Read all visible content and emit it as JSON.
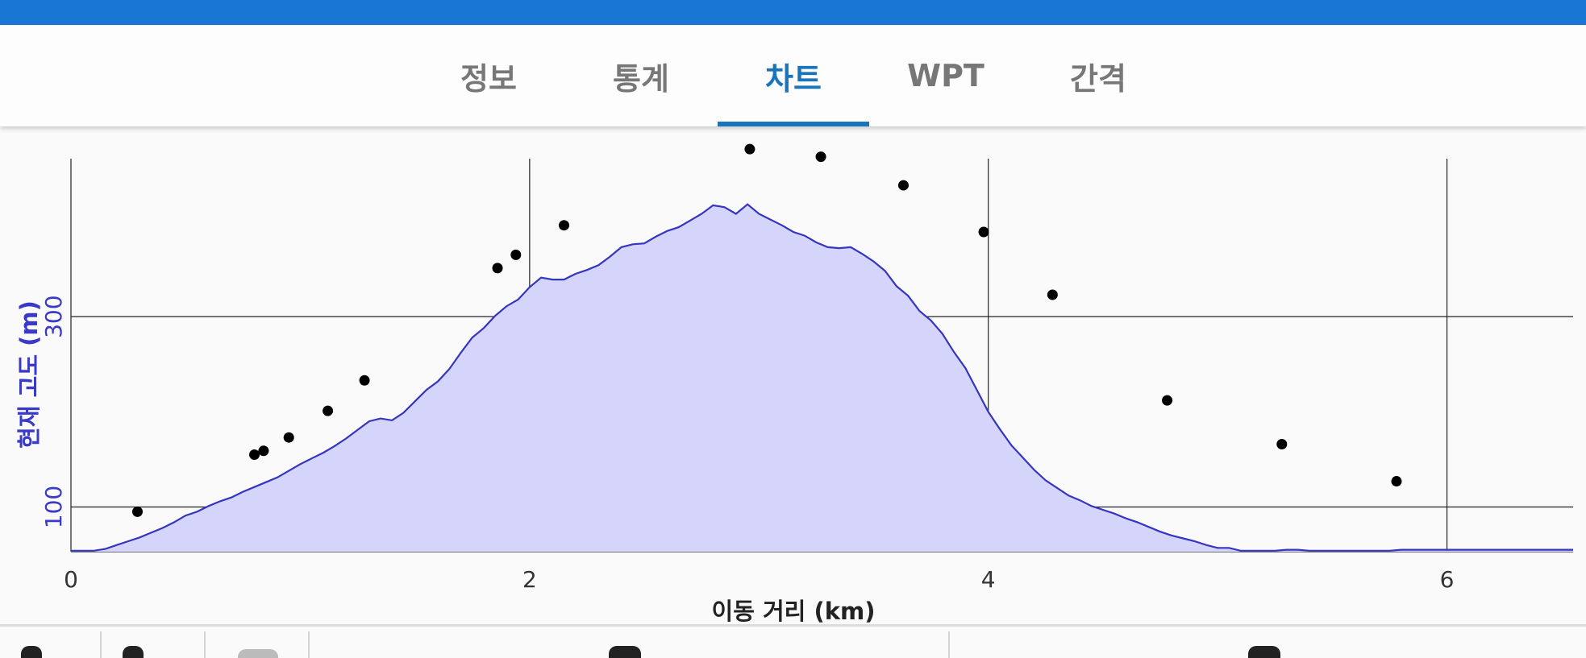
{
  "tabs": [
    {
      "label": "정보",
      "active": false
    },
    {
      "label": "통계",
      "active": false
    },
    {
      "label": "차트",
      "active": true
    },
    {
      "label": "WPT",
      "active": false
    },
    {
      "label": "간격",
      "active": false
    }
  ],
  "colors": {
    "status_bar": "#1976d2",
    "tab_active": "#1a73bd",
    "tab_inactive": "#777777",
    "area_fill": "#d5d4fb",
    "area_line": "#3535c0",
    "axis_label_y": "#3a3ac8",
    "points": "#000000"
  },
  "chart_data": {
    "type": "area",
    "title": "",
    "xlabel": "이동 거리 (km)",
    "ylabel": "현재 고도 (m)",
    "xlim": [
      0,
      6.55
    ],
    "ylim": [
      53,
      466
    ],
    "x_ticks": [
      0,
      2,
      4,
      6
    ],
    "y_ticks": [
      100,
      300
    ],
    "grid": true,
    "legend": "none",
    "series": [
      {
        "kind": "area",
        "x": [
          0,
          0.05,
          0.1,
          0.15,
          0.2,
          0.25,
          0.3,
          0.35,
          0.4,
          0.45,
          0.5,
          0.55,
          0.6,
          0.65,
          0.7,
          0.75,
          0.8,
          0.85,
          0.9,
          0.95,
          1.0,
          1.05,
          1.1,
          1.15,
          1.2,
          1.25,
          1.3,
          1.35,
          1.4,
          1.45,
          1.5,
          1.55,
          1.6,
          1.65,
          1.7,
          1.75,
          1.8,
          1.85,
          1.9,
          1.95,
          2.0,
          2.05,
          2.1,
          2.15,
          2.2,
          2.25,
          2.3,
          2.35,
          2.4,
          2.45,
          2.5,
          2.55,
          2.6,
          2.65,
          2.7,
          2.75,
          2.8,
          2.85,
          2.9,
          2.95,
          3.0,
          3.05,
          3.1,
          3.15,
          3.2,
          3.25,
          3.3,
          3.35,
          3.4,
          3.45,
          3.5,
          3.55,
          3.6,
          3.65,
          3.7,
          3.75,
          3.8,
          3.85,
          3.9,
          3.95,
          4.0,
          4.05,
          4.1,
          4.15,
          4.2,
          4.25,
          4.3,
          4.35,
          4.4,
          4.45,
          4.5,
          4.55,
          4.6,
          4.65,
          4.7,
          4.75,
          4.8,
          4.85,
          4.9,
          4.95,
          5.0,
          5.05,
          5.1,
          5.15,
          5.2,
          5.25,
          5.3,
          5.35,
          5.4,
          5.45,
          5.5,
          5.55,
          5.6,
          5.65,
          5.7,
          5.75,
          5.8,
          5.85,
          5.9,
          5.95,
          6.0,
          6.05,
          6.1,
          6.15,
          6.2,
          6.25,
          6.3,
          6.35,
          6.4,
          6.45,
          6.5,
          6.55
        ],
        "y": [
          54,
          54,
          54,
          56,
          60,
          64,
          68,
          73,
          78,
          84,
          91,
          95,
          101,
          106,
          110,
          116,
          121,
          126,
          131,
          138,
          145,
          151,
          157,
          164,
          172,
          181,
          190,
          193,
          191,
          199,
          211,
          223,
          232,
          245,
          262,
          278,
          288,
          301,
          311,
          318,
          331,
          341,
          339,
          339,
          345,
          349,
          354,
          363,
          373,
          376,
          377,
          384,
          390,
          394,
          401,
          408,
          417,
          415,
          408,
          418,
          408,
          402,
          396,
          389,
          385,
          378,
          373,
          372,
          373,
          366,
          358,
          348,
          332,
          322,
          306,
          296,
          282,
          263,
          246,
          223,
          200,
          182,
          165,
          152,
          139,
          128,
          120,
          112,
          107,
          101,
          97,
          93,
          88,
          84,
          79,
          74,
          70,
          67,
          64,
          60,
          57,
          57,
          54,
          54,
          54,
          54,
          55,
          55,
          54,
          54,
          54,
          54,
          54,
          54,
          54,
          54,
          55,
          55,
          55,
          55,
          55,
          55,
          55,
          55,
          55,
          55,
          55,
          55,
          55,
          55,
          55,
          55
        ]
      },
      {
        "kind": "scatter",
        "x": [
          0.29,
          0.8,
          0.84,
          0.95,
          1.12,
          1.28,
          1.86,
          1.94,
          2.15,
          2.96,
          3.27,
          3.63,
          3.98,
          4.28,
          4.78,
          5.28,
          5.78
        ],
        "y": [
          95,
          155,
          159,
          173,
          201,
          233,
          351,
          365,
          396,
          476,
          468,
          438,
          389,
          323,
          212,
          166,
          127
        ]
      }
    ]
  },
  "bottom": {
    "label": ""
  }
}
